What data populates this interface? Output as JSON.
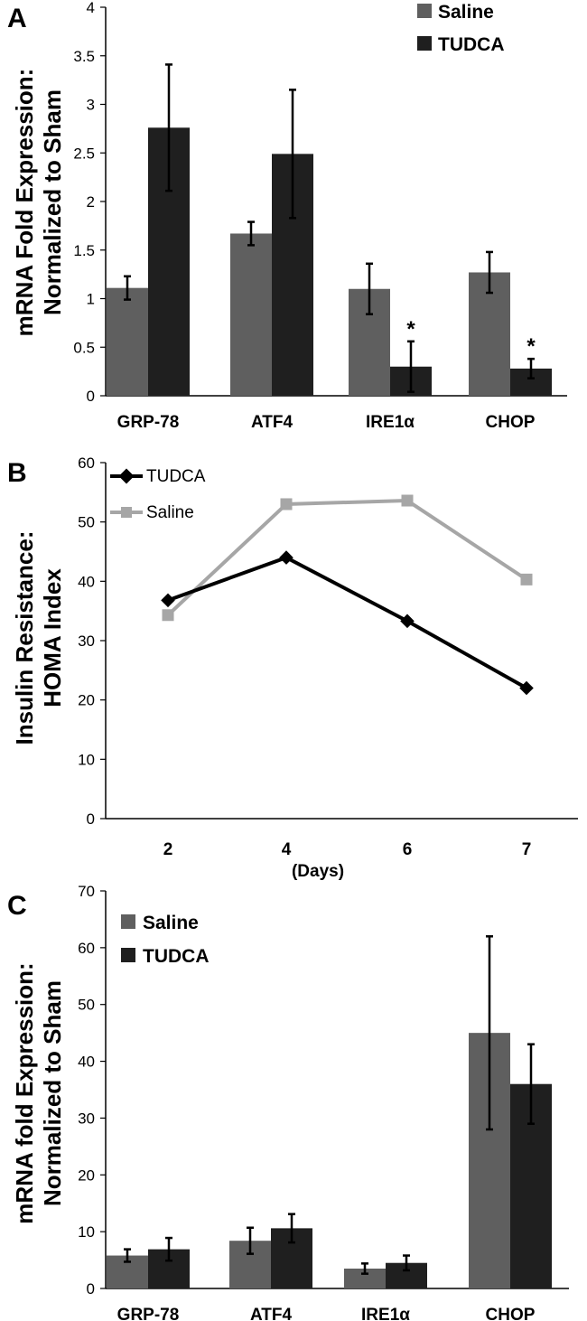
{
  "chart_data": [
    {
      "panel": "A",
      "type": "bar",
      "ylabel": [
        "mRNA Fold Expression:",
        "Normalized to Sham"
      ],
      "categories": [
        "GRP-78",
        "ATF4",
        "IRE1α",
        "CHOP"
      ],
      "ylim": [
        0,
        4
      ],
      "yticks": [
        "0",
        "0.5",
        "1",
        "1.5",
        "2",
        "2.5",
        "3",
        "3.5",
        "4"
      ],
      "series": [
        {
          "name": "Saline",
          "color": "#5f5f5f",
          "values": [
            1.11,
            1.67,
            1.1,
            1.27
          ],
          "errors": [
            0.12,
            0.12,
            0.26,
            0.21
          ],
          "sig": [
            "",
            "",
            "",
            ""
          ]
        },
        {
          "name": "TUDCA",
          "color": "#1f1f1f",
          "values": [
            2.76,
            2.49,
            0.3,
            0.28
          ],
          "errors": [
            0.65,
            0.66,
            0.26,
            0.1
          ],
          "sig": [
            "",
            "",
            "*",
            "*"
          ]
        }
      ],
      "legend": "top-right",
      "grid": false
    },
    {
      "panel": "B",
      "type": "line",
      "ylabel": [
        "Insulin Resistance:",
        "HOMA Index"
      ],
      "xlabel": "(Days)",
      "categories": [
        "2",
        "4",
        "6",
        "7"
      ],
      "ylim": [
        0,
        60
      ],
      "yticks": [
        "0",
        "10",
        "20",
        "30",
        "40",
        "50",
        "60"
      ],
      "series": [
        {
          "name": "TUDCA",
          "color": "#000000",
          "marker": "diamond",
          "values": [
            36.8,
            44.0,
            33.3,
            22.0
          ]
        },
        {
          "name": "Saline",
          "color": "#a6a6a6",
          "marker": "square",
          "values": [
            34.3,
            53.0,
            53.6,
            40.3
          ]
        }
      ],
      "legend": "top-left",
      "grid": false
    },
    {
      "panel": "C",
      "type": "bar",
      "ylabel": [
        "mRNA fold Expression:",
        "Normalized to Sham"
      ],
      "categories": [
        "GRP-78",
        "ATF4",
        "IRE1α",
        "CHOP"
      ],
      "ylim": [
        0,
        70
      ],
      "yticks": [
        "0",
        "10",
        "20",
        "30",
        "40",
        "50",
        "60",
        "70"
      ],
      "series": [
        {
          "name": "Saline",
          "color": "#5f5f5f",
          "values": [
            5.8,
            8.4,
            3.5,
            45.0
          ],
          "errors": [
            1.1,
            2.3,
            0.9,
            17.0
          ],
          "sig": [
            "",
            "",
            "",
            ""
          ]
        },
        {
          "name": "TUDCA",
          "color": "#1f1f1f",
          "values": [
            6.9,
            10.6,
            4.5,
            36.0
          ],
          "errors": [
            2.0,
            2.5,
            1.3,
            7.0
          ],
          "sig": [
            "",
            "",
            "",
            ""
          ]
        }
      ],
      "legend": "top-left",
      "grid": false
    }
  ]
}
